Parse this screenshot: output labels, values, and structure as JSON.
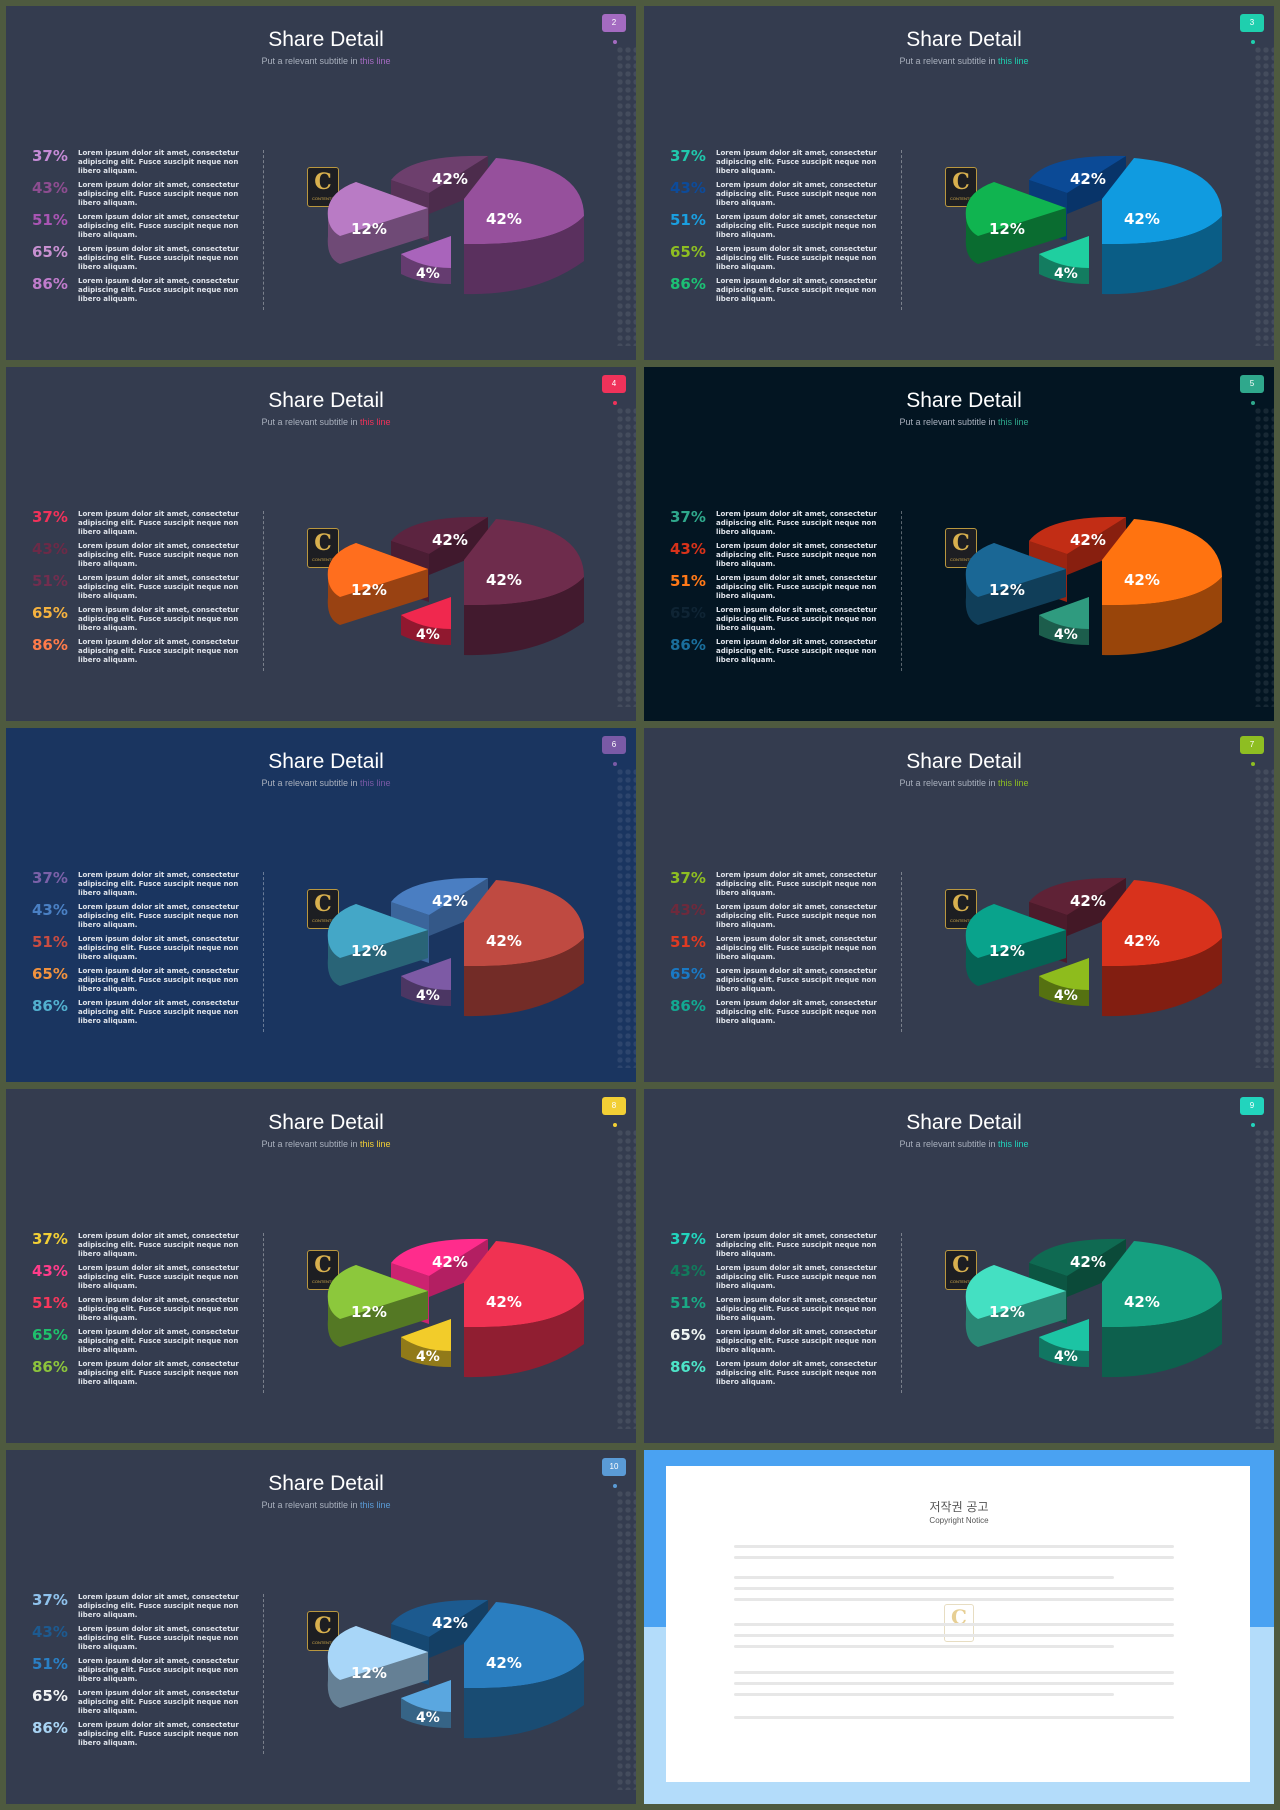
{
  "slides": [
    {
      "title": "Share Detail",
      "subtitle_pre": "Put a relevant subtitle in ",
      "subtitle_hl": "this line",
      "number": "2",
      "accent": "#a46bc1",
      "bg": "#343c4f",
      "items": [
        {
          "pct": "37%",
          "color": "#c58bd6"
        },
        {
          "pct": "43%",
          "color": "#8d4d90"
        },
        {
          "pct": "51%",
          "color": "#a855b3"
        },
        {
          "pct": "65%",
          "color": "#c890d1"
        },
        {
          "pct": "86%",
          "color": "#c07ccc"
        }
      ],
      "pie_colors": [
        "#6d3f6d",
        "#96509c",
        "#b97bc5",
        "#a964bb"
      ]
    },
    {
      "title": "Share Detail",
      "subtitle_pre": "Put a relevant subtitle in ",
      "subtitle_hl": "this line",
      "number": "3",
      "accent": "#1fcfae",
      "bg": "#343c4f",
      "items": [
        {
          "pct": "37%",
          "color": "#20c7ac"
        },
        {
          "pct": "43%",
          "color": "#0d4b9a"
        },
        {
          "pct": "51%",
          "color": "#1a9fe0"
        },
        {
          "pct": "65%",
          "color": "#8ebe22"
        },
        {
          "pct": "86%",
          "color": "#1cc074"
        }
      ],
      "pie_colors": [
        "#0b4a96",
        "#109be0",
        "#10b450",
        "#1fcfa0"
      ]
    },
    {
      "title": "Share Detail",
      "subtitle_pre": "Put a relevant subtitle in ",
      "subtitle_hl": "this line",
      "number": "4",
      "accent": "#f0325a",
      "bg": "#343c4f",
      "items": [
        {
          "pct": "37%",
          "color": "#f0325a"
        },
        {
          "pct": "43%",
          "color": "#6c2a47"
        },
        {
          "pct": "51%",
          "color": "#722e4f"
        },
        {
          "pct": "65%",
          "color": "#f5b23f"
        },
        {
          "pct": "86%",
          "color": "#ff7b4a"
        }
      ],
      "pie_colors": [
        "#5c2440",
        "#6e2c4c",
        "#ff6e1e",
        "#f0284e"
      ]
    },
    {
      "title": "Share Detail",
      "subtitle_pre": "Put a relevant subtitle in ",
      "subtitle_hl": "this line",
      "number": "5",
      "accent": "#2fa88c",
      "bg": "#031522",
      "items": [
        {
          "pct": "37%",
          "color": "#2fa88c"
        },
        {
          "pct": "43%",
          "color": "#d8321a"
        },
        {
          "pct": "51%",
          "color": "#ff7818"
        },
        {
          "pct": "65%",
          "color": "#0f2434"
        },
        {
          "pct": "86%",
          "color": "#1a6e9c"
        }
      ],
      "pie_colors": [
        "#c22d15",
        "#ff7310",
        "#1a6795",
        "#2f9b7f"
      ]
    },
    {
      "title": "Share Detail",
      "subtitle_pre": "Put a relevant subtitle in ",
      "subtitle_hl": "this line",
      "number": "6",
      "accent": "#7a5aa6",
      "bg": "#1a3560",
      "items": [
        {
          "pct": "37%",
          "color": "#7a61a8"
        },
        {
          "pct": "43%",
          "color": "#4a80c4"
        },
        {
          "pct": "51%",
          "color": "#c84c42"
        },
        {
          "pct": "65%",
          "color": "#f1923e"
        },
        {
          "pct": "86%",
          "color": "#52b0cf"
        }
      ],
      "pie_colors": [
        "#4a7ec2",
        "#bf4a41",
        "#44a7c7",
        "#7d5aa5"
      ]
    },
    {
      "title": "Share Detail",
      "subtitle_pre": "Put a relevant subtitle in ",
      "subtitle_hl": "this line",
      "number": "7",
      "accent": "#8ebe22",
      "bg": "#343c4f",
      "items": [
        {
          "pct": "37%",
          "color": "#8ebe22"
        },
        {
          "pct": "43%",
          "color": "#6e2a3c"
        },
        {
          "pct": "51%",
          "color": "#e03a22"
        },
        {
          "pct": "65%",
          "color": "#1a79c4"
        },
        {
          "pct": "86%",
          "color": "#13a892"
        }
      ],
      "pie_colors": [
        "#5f2236",
        "#d8321c",
        "#09a38c",
        "#8ebc1d"
      ]
    },
    {
      "title": "Share Detail",
      "subtitle_pre": "Put a relevant subtitle in ",
      "subtitle_hl": "this line",
      "number": "8",
      "accent": "#f2cf35",
      "bg": "#343c4f",
      "items": [
        {
          "pct": "37%",
          "color": "#f2cf35"
        },
        {
          "pct": "43%",
          "color": "#ff3c8a"
        },
        {
          "pct": "51%",
          "color": "#f6385c"
        },
        {
          "pct": "65%",
          "color": "#1fc06c"
        },
        {
          "pct": "86%",
          "color": "#8cc43c"
        }
      ],
      "pie_colors": [
        "#ff2c8c",
        "#f03252",
        "#8cc83c",
        "#f2cc2a"
      ]
    },
    {
      "title": "Share Detail",
      "subtitle_pre": "Put a relevant subtitle in ",
      "subtitle_hl": "this line",
      "number": "9",
      "accent": "#22d4bd",
      "bg": "#343c4f",
      "items": [
        {
          "pct": "37%",
          "color": "#22d4bd"
        },
        {
          "pct": "43%",
          "color": "#127a5c"
        },
        {
          "pct": "51%",
          "color": "#1aa884"
        },
        {
          "pct": "65%",
          "color": "#eef4f2"
        },
        {
          "pct": "86%",
          "color": "#4de4c8"
        }
      ],
      "pie_colors": [
        "#0f6a52",
        "#15a080",
        "#44e0c2",
        "#1cc4a4"
      ]
    },
    {
      "title": "Share Detail",
      "subtitle_pre": "Put a relevant subtitle in ",
      "subtitle_hl": "this line",
      "number": "10",
      "accent": "#5a9bd6",
      "bg": "#343c4f",
      "items": [
        {
          "pct": "37%",
          "color": "#8fc2ec"
        },
        {
          "pct": "43%",
          "color": "#1d5a90"
        },
        {
          "pct": "51%",
          "color": "#2a7fc4"
        },
        {
          "pct": "65%",
          "color": "#f0f2f4"
        },
        {
          "pct": "86%",
          "color": "#a8d4f4"
        }
      ],
      "pie_colors": [
        "#1c5a8f",
        "#2a7ec0",
        "#a8d6f8",
        "#5aa7e0"
      ]
    }
  ],
  "item_text": "Lorem ipsum dolor sit amet, consectetur adipiscing elit. Fusce suscipit neque non libero aliquam.",
  "chart_labels": {
    "big_a": "42%",
    "big_b": "42%",
    "mid": "12%",
    "small": "4%"
  },
  "logo": {
    "letter": "C",
    "caption": "CONTENTS"
  },
  "copyright": {
    "title": "저작권 공고",
    "subtitle": "Copyright Notice",
    "logo": "C"
  }
}
